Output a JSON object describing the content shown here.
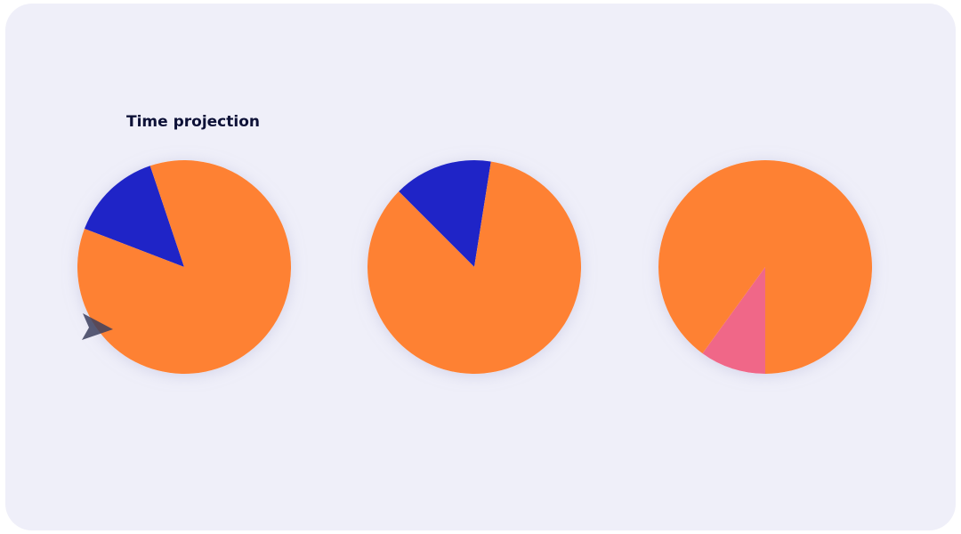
{
  "header": {
    "title": "Time projection"
  },
  "chart_data": [
    {
      "type": "pie",
      "values": [
        14,
        86
      ],
      "colors": [
        "#1f24c7",
        "#fe8133"
      ]
    },
    {
      "type": "pie",
      "values": [
        15,
        85
      ],
      "colors": [
        "#1f24c7",
        "#fe8133"
      ]
    },
    {
      "type": "pie",
      "values": [
        10,
        90
      ],
      "colors": [
        "#f06788",
        "#fe8133"
      ]
    }
  ]
}
